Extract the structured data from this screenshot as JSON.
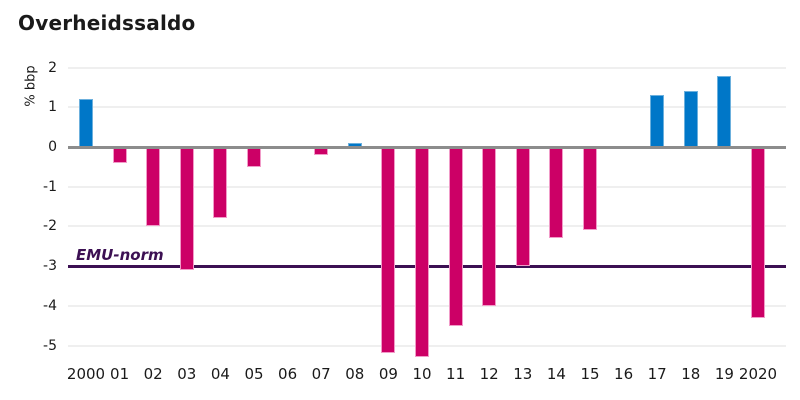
{
  "title": "Overheidssaldo",
  "y_axis": {
    "label": "% bbp",
    "ticks": [
      "2",
      "1",
      "0",
      "-1",
      "-2",
      "-3",
      "-4",
      "-5"
    ]
  },
  "reference_line": {
    "label": "EMU-norm",
    "value": -3
  },
  "chart_data": {
    "type": "bar",
    "title": "Overheidssaldo",
    "xlabel": "",
    "ylabel": "% bbp",
    "categories": [
      "2000",
      "01",
      "02",
      "03",
      "04",
      "05",
      "06",
      "07",
      "08",
      "09",
      "10",
      "11",
      "12",
      "13",
      "14",
      "15",
      "16",
      "17",
      "18",
      "19",
      "2020"
    ],
    "values": [
      1.2,
      -0.4,
      -2.0,
      -3.1,
      -1.8,
      -0.5,
      0.0,
      -0.2,
      0.1,
      -5.2,
      -5.3,
      -4.5,
      -4.0,
      -3.0,
      -2.3,
      -2.1,
      0.0,
      1.3,
      1.4,
      1.8,
      -4.3
    ],
    "yticks": [
      2,
      1,
      0,
      -1,
      -2,
      -3,
      -4,
      -5
    ],
    "ylim": [
      -5.6,
      2.3
    ],
    "grid": true,
    "legend": "none",
    "reference_line": {
      "label": "EMU-norm",
      "value": -3
    },
    "colors": {
      "positive": "#0077c8",
      "positive_border": "#6cb0dd",
      "negative": "#cc0066",
      "negative_border": "#f19bc8",
      "reference": "#3c1053",
      "zero_line": "#8c8c8c",
      "gridline": "#efefef",
      "text": "#1a1a1a"
    }
  }
}
